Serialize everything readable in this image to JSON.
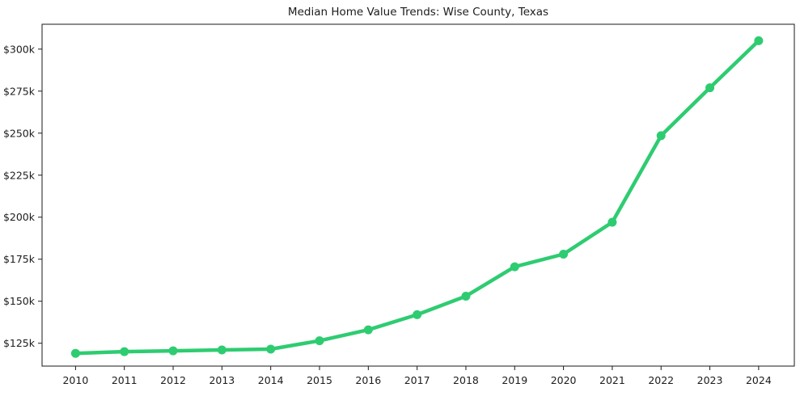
{
  "chart_data": {
    "type": "line",
    "title": "Median Home Value Trends: Wise County, Texas",
    "xlabel": "",
    "ylabel": "",
    "grid": false,
    "legend_position": "none",
    "marker": "circle",
    "line_color": "#2ecc71",
    "axis_color": "#1a1a1a",
    "text_color": "#1c1c1c",
    "background_color": "#ffffff",
    "categories": [
      "2010",
      "2011",
      "2012",
      "2013",
      "2014",
      "2015",
      "2016",
      "2017",
      "2018",
      "2019",
      "2020",
      "2021",
      "2022",
      "2023",
      "2024"
    ],
    "series": [
      {
        "color": "#2ecc71",
        "values": [
          119000,
          120000,
          120500,
          121000,
          121500,
          126500,
          133000,
          142000,
          153000,
          170500,
          178000,
          197000,
          248500,
          277000,
          305000
        ]
      }
    ],
    "y_ticks": {
      "values": [
        125000,
        150000,
        175000,
        200000,
        225000,
        250000,
        275000,
        300000
      ],
      "labels": [
        "$125k",
        "$150k",
        "$175k",
        "$200k",
        "$225k",
        "$250k",
        "$275k",
        "$300k"
      ]
    },
    "ylim": [
      111400,
      314800
    ]
  }
}
